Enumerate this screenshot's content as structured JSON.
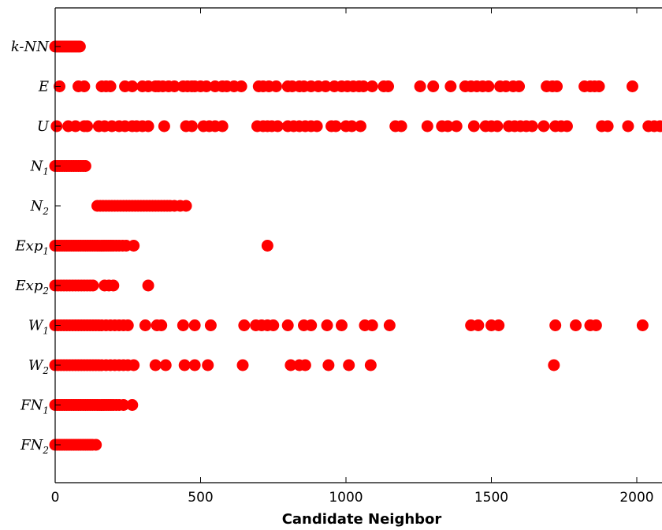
{
  "chart_data": {
    "type": "scatter",
    "title": "",
    "xlabel": "Candidate Neighbor",
    "ylabel": "",
    "xlim": [
      0,
      2100
    ],
    "xticks": [
      "0",
      "500",
      "1000",
      "1500",
      "2000"
    ],
    "xtick_values": [
      0,
      500,
      1000,
      1500,
      2000
    ],
    "grid": false,
    "legend": "none",
    "marker_color": "#ff0000",
    "categories": [
      {
        "base": "k-NN",
        "sub": ""
      },
      {
        "base": "E",
        "sub": ""
      },
      {
        "base": "U",
        "sub": ""
      },
      {
        "base": "N",
        "sub": "1"
      },
      {
        "base": "N",
        "sub": "2"
      },
      {
        "base": "Exp",
        "sub": "1"
      },
      {
        "base": "Exp",
        "sub": "2"
      },
      {
        "base": "W",
        "sub": "1"
      },
      {
        "base": "W",
        "sub": "2"
      },
      {
        "base": "FN",
        "sub": "1"
      },
      {
        "base": "FN",
        "sub": "2"
      }
    ],
    "series": [
      {
        "category": "k-NN",
        "x": [
          0,
          5,
          10,
          15,
          20,
          25,
          30,
          35,
          40,
          45,
          50,
          55,
          60,
          65,
          70,
          75,
          80,
          85
        ]
      },
      {
        "category": "E",
        "x": [
          15,
          80,
          100,
          160,
          175,
          190,
          240,
          265,
          300,
          320,
          345,
          355,
          370,
          390,
          410,
          440,
          455,
          470,
          480,
          500,
          520,
          550,
          575,
          590,
          615,
          640,
          700,
          715,
          735,
          760,
          800,
          815,
          840,
          855,
          880,
          905,
          930,
          960,
          985,
          1005,
          1025,
          1045,
          1060,
          1090,
          1130,
          1145,
          1255,
          1300,
          1360,
          1410,
          1430,
          1450,
          1470,
          1490,
          1530,
          1550,
          1575,
          1595,
          1690,
          1710,
          1725,
          1820,
          1840,
          1855,
          1870,
          1985
        ]
      },
      {
        "category": "U",
        "x": [
          5,
          45,
          70,
          100,
          110,
          150,
          170,
          195,
          220,
          240,
          265,
          280,
          300,
          320,
          375,
          450,
          470,
          510,
          530,
          550,
          575,
          695,
          715,
          730,
          745,
          765,
          800,
          820,
          840,
          860,
          880,
          900,
          950,
          965,
          1000,
          1020,
          1050,
          1170,
          1190,
          1280,
          1330,
          1350,
          1380,
          1440,
          1480,
          1500,
          1520,
          1560,
          1580,
          1600,
          1620,
          1640,
          1680,
          1720,
          1740,
          1760,
          1880,
          1900,
          1970,
          2040,
          2060,
          2080
        ]
      },
      {
        "category": "N1",
        "x": [
          0,
          8,
          16,
          24,
          32,
          40,
          48,
          56,
          64,
          72,
          80,
          88,
          96,
          104
        ]
      },
      {
        "category": "N2",
        "x": [
          145,
          155,
          165,
          175,
          185,
          195,
          205,
          215,
          225,
          235,
          245,
          255,
          265,
          275,
          285,
          295,
          305,
          315,
          325,
          335,
          345,
          355,
          365,
          375,
          385,
          395,
          410,
          430,
          450
        ]
      },
      {
        "category": "Exp1",
        "x": [
          0,
          8,
          16,
          24,
          32,
          40,
          48,
          56,
          64,
          72,
          80,
          88,
          96,
          104,
          112,
          120,
          128,
          136,
          144,
          152,
          160,
          168,
          176,
          184,
          192,
          200,
          210,
          220,
          232,
          244,
          270,
          730
        ]
      },
      {
        "category": "Exp2",
        "x": [
          0,
          10,
          20,
          30,
          40,
          50,
          60,
          70,
          80,
          90,
          100,
          110,
          120,
          130,
          170,
          185,
          200,
          320
        ]
      },
      {
        "category": "W1",
        "x": [
          0,
          10,
          20,
          30,
          40,
          50,
          60,
          70,
          80,
          90,
          100,
          110,
          120,
          130,
          140,
          150,
          160,
          175,
          190,
          205,
          220,
          235,
          250,
          310,
          350,
          365,
          440,
          480,
          535,
          650,
          690,
          710,
          730,
          750,
          800,
          855,
          880,
          935,
          985,
          1065,
          1090,
          1150,
          1430,
          1455,
          1500,
          1525,
          1720,
          1790,
          1840,
          1860,
          2020
        ]
      },
      {
        "category": "W2",
        "x": [
          0,
          10,
          20,
          30,
          40,
          50,
          60,
          70,
          80,
          90,
          100,
          110,
          120,
          130,
          140,
          150,
          160,
          175,
          190,
          205,
          220,
          235,
          250,
          270,
          345,
          380,
          445,
          480,
          525,
          645,
          810,
          840,
          860,
          940,
          1010,
          1085,
          1715
        ]
      },
      {
        "category": "FN1",
        "x": [
          0,
          8,
          16,
          24,
          32,
          40,
          48,
          56,
          64,
          72,
          80,
          88,
          96,
          104,
          112,
          120,
          128,
          136,
          144,
          152,
          160,
          168,
          176,
          184,
          192,
          200,
          210,
          220,
          235,
          265
        ]
      },
      {
        "category": "FN2",
        "x": [
          0,
          8,
          16,
          24,
          32,
          40,
          48,
          56,
          64,
          72,
          80,
          88,
          96,
          104,
          112,
          120,
          128,
          140
        ]
      }
    ]
  }
}
